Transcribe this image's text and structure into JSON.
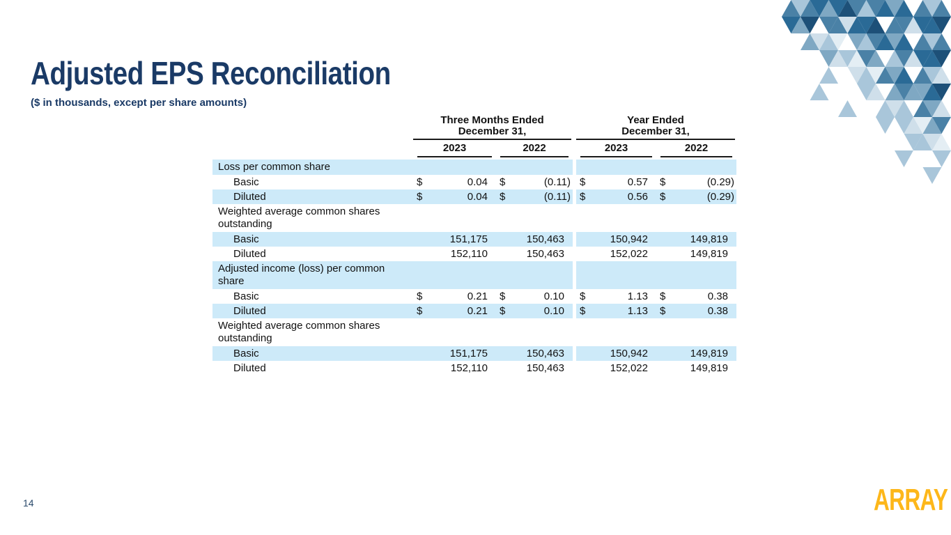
{
  "slide": {
    "title": "Adjusted EPS Reconciliation",
    "subtitle": "($ in thousands, except per share amounts)",
    "page_number": "14",
    "logo_text": "ARRAY"
  },
  "colors": {
    "title_navy": "#1a3a66",
    "row_highlight": "#cdeaf9",
    "logo_yellow": "#fdb71a",
    "rule_dark": "#1a1a1a",
    "triangle_palette": [
      "#1d5078",
      "#2a6a96",
      "#4a81a6",
      "#7fa8c3",
      "#a9c6da",
      "#cfdfea",
      "#e4eef4"
    ]
  },
  "table": {
    "currency_symbol": "$",
    "col_groups": [
      {
        "title_line1": "Three Months Ended",
        "title_line2": "December 31,",
        "years": [
          "2023",
          "2022"
        ]
      },
      {
        "title_line1": "Year Ended",
        "title_line2": "December 31,",
        "years": [
          "2023",
          "2022"
        ]
      }
    ],
    "rows": [
      {
        "label": "Loss per common share",
        "section": true,
        "highlight": true,
        "dollar": false,
        "values": [
          "",
          "",
          "",
          ""
        ]
      },
      {
        "label": "Basic",
        "section": false,
        "highlight": false,
        "dollar": true,
        "values": [
          "0.04",
          "(0.11)",
          "0.57",
          "(0.29)"
        ]
      },
      {
        "label": "Diluted",
        "section": false,
        "highlight": true,
        "dollar": true,
        "values": [
          "0.04",
          "(0.11)",
          "0.56",
          "(0.29)"
        ]
      },
      {
        "label": "Weighted average common shares outstanding",
        "section": true,
        "highlight": false,
        "dollar": false,
        "values": [
          "",
          "",
          "",
          ""
        ]
      },
      {
        "label": "Basic",
        "section": false,
        "highlight": true,
        "dollar": false,
        "values": [
          "151,175",
          "150,463",
          "150,942",
          "149,819"
        ]
      },
      {
        "label": "Diluted",
        "section": false,
        "highlight": false,
        "dollar": false,
        "values": [
          "152,110",
          "150,463",
          "152,022",
          "149,819"
        ]
      },
      {
        "label": "Adjusted income (loss) per common share",
        "section": true,
        "highlight": true,
        "dollar": false,
        "values": [
          "",
          "",
          "",
          ""
        ]
      },
      {
        "label": "Basic",
        "section": false,
        "highlight": false,
        "dollar": true,
        "values": [
          "0.21",
          "0.10",
          "1.13",
          "0.38"
        ]
      },
      {
        "label": "Diluted",
        "section": false,
        "highlight": true,
        "dollar": true,
        "values": [
          "0.21",
          "0.10",
          "1.13",
          "0.38"
        ]
      },
      {
        "label": "Weighted average common shares outstanding",
        "section": true,
        "highlight": false,
        "dollar": false,
        "values": [
          "",
          "",
          "",
          ""
        ]
      },
      {
        "label": "Basic",
        "section": false,
        "highlight": true,
        "dollar": false,
        "values": [
          "151,175",
          "150,463",
          "150,942",
          "149,819"
        ]
      },
      {
        "label": "Diluted",
        "section": false,
        "highlight": false,
        "dollar": false,
        "values": [
          "152,110",
          "150,463",
          "152,022",
          "149,819"
        ]
      }
    ]
  }
}
